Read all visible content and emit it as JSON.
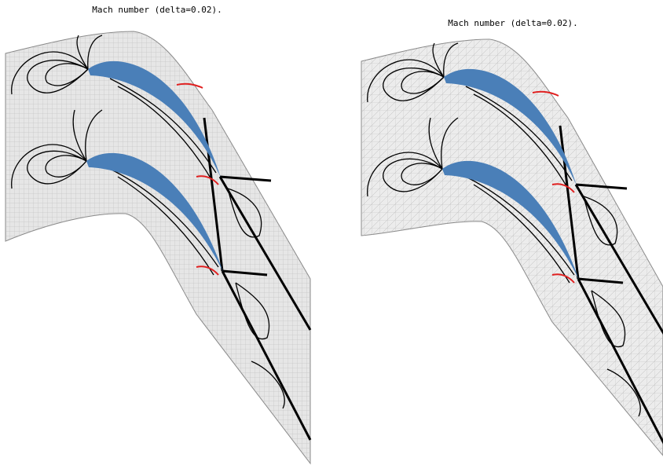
{
  "panels": [
    {
      "title": "Mach number (delta=0.02)."
    },
    {
      "title": "Mach number (delta=0.02)."
    }
  ]
}
